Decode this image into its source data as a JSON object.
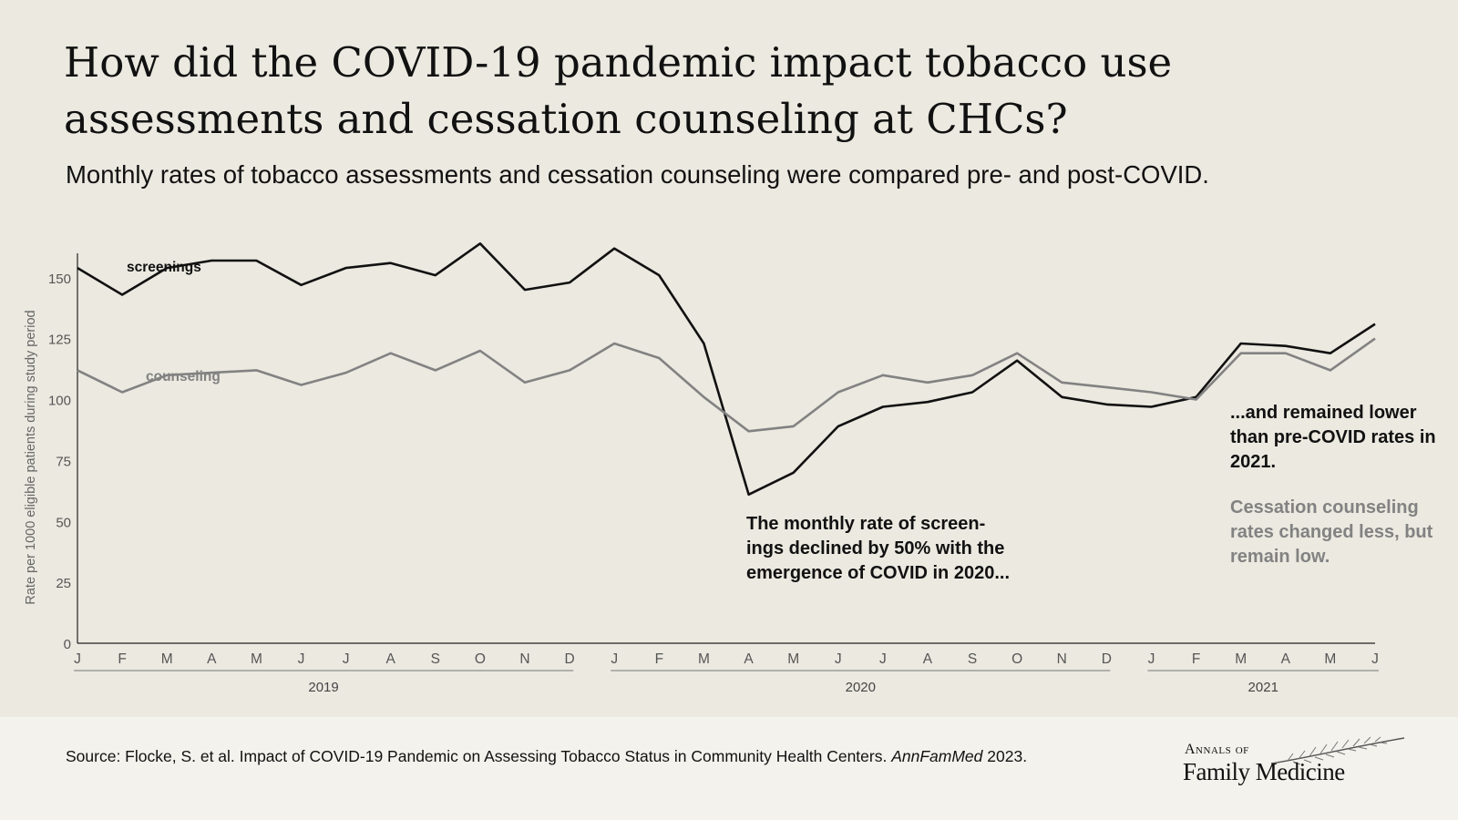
{
  "title": "How did the COVID-19 pandemic impact tobacco use assessments and cessation counseling at CHCs?",
  "subtitle": "Monthly rates of tobacco assessments and cessation counseling were compared pre- and post-COVID.",
  "annotations": {
    "decline": "The monthly rate of screen-ings declined by 50% with the emergence of COVID in 2020...",
    "lower": "...and remained lower than pre-COVID rates in 2021.",
    "counseling": "Cessation counseling rates changed less, but remain low."
  },
  "source": {
    "text": "Source: Flocke, S. et al. Impact of COVID-19 Pandemic on Assessing Tobacco Status in Community Health Centers.",
    "journal": "AnnFamMed",
    "year": "2023."
  },
  "logo": {
    "top": "Annals of",
    "main": "Family Medicine"
  },
  "colors": {
    "screenings": "#111111",
    "counseling": "#828282",
    "background": "#ebe9e0"
  },
  "chart_data": {
    "type": "line",
    "ylabel": "Rate per 1000 eligible patients during study period",
    "ylim": [
      0,
      160
    ],
    "yticks": [
      0,
      25,
      50,
      75,
      100,
      125,
      150
    ],
    "grid": false,
    "x": [
      "J",
      "F",
      "M",
      "A",
      "M",
      "J",
      "J",
      "A",
      "S",
      "O",
      "N",
      "D",
      "J",
      "F",
      "M",
      "A",
      "M",
      "J",
      "J",
      "A",
      "S",
      "O",
      "N",
      "D",
      "J",
      "F",
      "M",
      "A",
      "M",
      "J"
    ],
    "year_groups": [
      {
        "label": "2019"
      },
      {
        "label": "2020"
      },
      {
        "label": "2021"
      }
    ],
    "series": [
      {
        "name": "screenings",
        "values": [
          154,
          143,
          154,
          157,
          157,
          147,
          154,
          156,
          151,
          164,
          145,
          148,
          162,
          151,
          123,
          61,
          70,
          89,
          97,
          99,
          103,
          116,
          101,
          98,
          97,
          101,
          123,
          122,
          119,
          131
        ]
      },
      {
        "name": "counseling",
        "values": [
          112,
          103,
          110,
          111,
          112,
          106,
          111,
          119,
          112,
          120,
          107,
          112,
          123,
          117,
          101,
          87,
          89,
          103,
          110,
          107,
          110,
          119,
          107,
          105,
          103,
          100,
          119,
          119,
          112,
          125
        ]
      }
    ]
  }
}
